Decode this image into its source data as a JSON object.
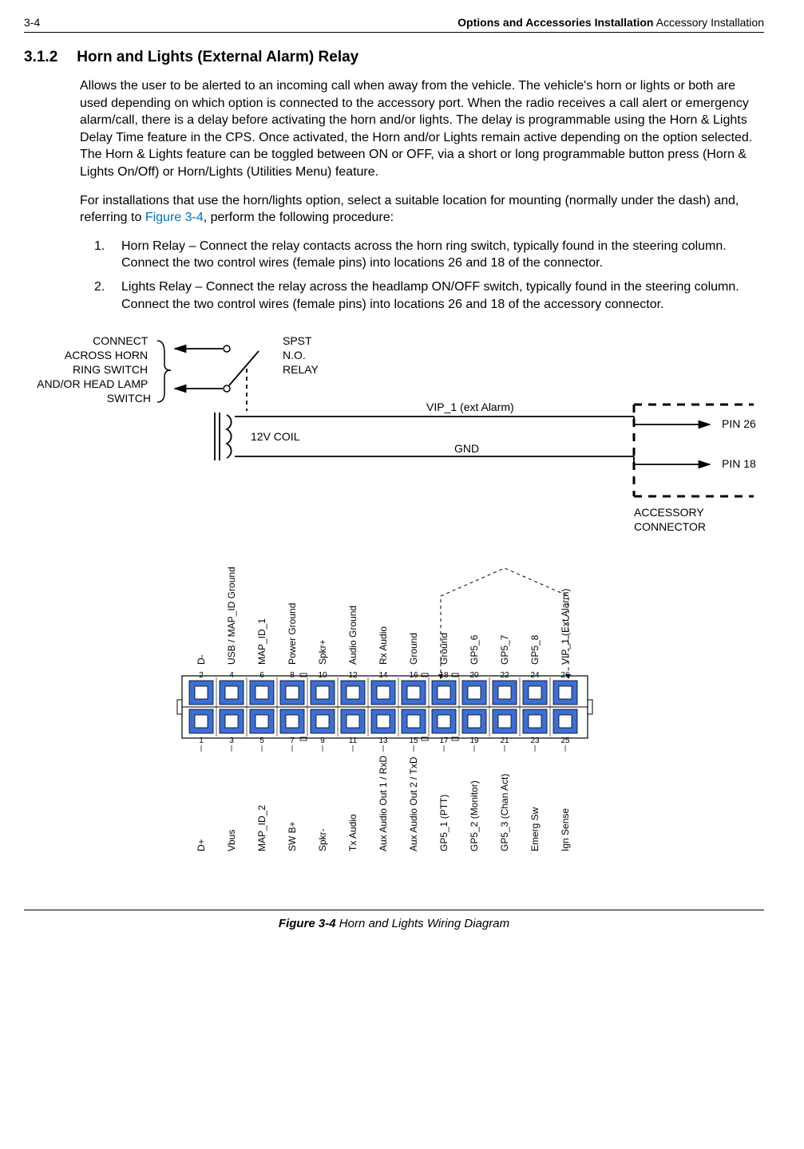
{
  "header": {
    "page_num": "3-4",
    "right_bold": "Options and Accessories Installation",
    "right_plain": " Accessory Installation"
  },
  "section": {
    "number": "3.1.2",
    "title": "Horn and Lights (External Alarm) Relay"
  },
  "para1": "Allows the user to be alerted to an incoming call when away from the vehicle. The vehicle's horn or lights or both are used depending on which option is connected to the accessory port. When the radio receives a call alert or emergency alarm/call, there is a delay before activating the horn and/or lights. The delay is programmable using the Horn & Lights Delay Time feature in the CPS. Once activated, the Horn and/or Lights remain active depending on the option selected. The Horn & Lights feature can be toggled between ON or OFF, via a short or long programmable button press (Horn & Lights On/Off) or Horn/Lights (Utilities Menu) feature.",
  "para2_pre": "For installations that use the horn/lights option, select a suitable location for mounting (normally under the dash) and, referring to ",
  "para2_link": "Figure 3-4",
  "para2_post": ", perform the following procedure:",
  "steps": [
    {
      "num": "1.",
      "text": "Horn Relay – Connect the relay contacts across the horn ring switch, typically found in the steering column. Connect the two control wires (female pins) into locations 26 and 18 of the connector."
    },
    {
      "num": "2.",
      "text": "Lights Relay – Connect the relay across the headlamp ON/OFF switch, typically found in the steering column. Connect the two control wires (female pins) into locations 26 and 18 of the accessory connector."
    }
  ],
  "figure": {
    "label": "Figure 3-4",
    "caption": "  Horn and Lights Wiring Diagram"
  },
  "relay_diagram": {
    "connect_label_lines": [
      "CONNECT",
      "ACROSS HORN",
      "RING SWITCH",
      "AND/OR HEAD LAMP",
      "SWITCH"
    ],
    "spst_lines": [
      "SPST",
      "N.O.",
      "RELAY"
    ],
    "coil_label": "12V COIL",
    "vip_label": "VIP_1 (ext Alarm)",
    "gnd_label": "GND",
    "pin26": "PIN 26",
    "pin18": "PIN 18",
    "acc_conn_lines": [
      "ACCESSORY",
      "CONNECTOR"
    ]
  },
  "connector": {
    "colors": {
      "pad_fill": "#3b6fd6",
      "pad_inner": "#ffffff",
      "outline": "#000000"
    },
    "top_pins": [
      {
        "num": "2",
        "label": "D-"
      },
      {
        "num": "4",
        "label": "USB / MAP_ID Ground"
      },
      {
        "num": "6",
        "label": "MAP_ID_1"
      },
      {
        "num": "8",
        "label": "Power Ground"
      },
      {
        "num": "10",
        "label": "Spkr+"
      },
      {
        "num": "12",
        "label": "Audio Ground"
      },
      {
        "num": "14",
        "label": "Rx Audio"
      },
      {
        "num": "16",
        "label": "Ground"
      },
      {
        "num": "18",
        "label": "Ground"
      },
      {
        "num": "20",
        "label": "GP5_6"
      },
      {
        "num": "22",
        "label": "GP5_7"
      },
      {
        "num": "24",
        "label": "GP5_8"
      },
      {
        "num": "26",
        "label": "VIP_1 (Ext Alarm)"
      }
    ],
    "bottom_pins": [
      {
        "num": "1",
        "label": "D+"
      },
      {
        "num": "3",
        "label": "Vbus"
      },
      {
        "num": "5",
        "label": "MAP_ID_2"
      },
      {
        "num": "7",
        "label": "SW B+"
      },
      {
        "num": "9",
        "label": "Spkr-"
      },
      {
        "num": "11",
        "label": "Tx Audio"
      },
      {
        "num": "13",
        "label": "Aux Audio Out 1 / RxD"
      },
      {
        "num": "15",
        "label": "Aux Audio Out 2 / TxD"
      },
      {
        "num": "17",
        "label": "GP5_1 (PTT)"
      },
      {
        "num": "19",
        "label": "GP5_2 (Monitor)"
      },
      {
        "num": "21",
        "label": "GP5_3 (Chan  Act)"
      },
      {
        "num": "23",
        "label": "Emerg Sw"
      },
      {
        "num": "25",
        "label": "Ign Sense"
      }
    ]
  }
}
